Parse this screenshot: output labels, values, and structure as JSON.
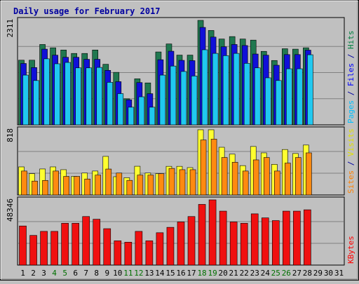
{
  "chart_data": {
    "type": "bar",
    "title": "Daily usage for February 2017",
    "x": [
      "1",
      "2",
      "3",
      "4",
      "5",
      "6",
      "7",
      "8",
      "9",
      "10",
      "11",
      "12",
      "13",
      "14",
      "15",
      "16",
      "17",
      "18",
      "19",
      "20",
      "21",
      "22",
      "23",
      "24",
      "25",
      "26",
      "27",
      "28",
      "29",
      "30",
      "31"
    ],
    "weekend_days": [
      "4",
      "5",
      "11",
      "12",
      "18",
      "19",
      "25",
      "26"
    ],
    "panels": [
      {
        "id": "hits-panel",
        "max_label": "2311",
        "ymax": 2311,
        "legend": [
          {
            "text": "Pages",
            "color": "#00c0ff"
          },
          {
            "text": " / ",
            "color": "#0000a0"
          },
          {
            "text": "Files",
            "color": "#0000ff"
          },
          {
            "text": " / ",
            "color": "#0000a0"
          },
          {
            "text": "Hits",
            "color": "#008040"
          }
        ],
        "series": [
          {
            "name": "Hits",
            "color": "#207850",
            "values": [
              1430,
              1430,
              1777,
              1704,
              1655,
              1579,
              1579,
              1655,
              1339,
              1161,
              576,
              1018,
              927,
              1612,
              1789,
              1542,
              1542,
              2311,
              2087,
              1898,
              1952,
              1898,
              1874,
              1625,
              1423,
              1683,
              1674,
              1704,
              null,
              null,
              null
            ]
          },
          {
            "name": "Files",
            "color": "#1010d8",
            "values": [
              1357,
              1267,
              1674,
              1541,
              1494,
              1494,
              1449,
              1449,
              1205,
              955,
              553,
              935,
              689,
              1440,
              1628,
              1426,
              1420,
              2155,
              1941,
              1726,
              1777,
              1754,
              1566,
              1541,
              1318,
              1554,
              1554,
              1652,
              null,
              null,
              null
            ]
          },
          {
            "name": "Pages",
            "color": "#20c8f0",
            "values": [
              1100,
              980,
              1460,
              1350,
              1380,
              1260,
              1260,
              1270,
              940,
              690,
              390,
              620,
              390,
              1100,
              1300,
              1180,
              1080,
              1660,
              1580,
              1530,
              1580,
              1360,
              1260,
              1040,
              980,
              1240,
              1240,
              1550,
              null,
              null,
              null
            ]
          }
        ]
      },
      {
        "id": "visits-panel",
        "max_label": "818",
        "ymax": 818,
        "legend": [
          {
            "text": "Sites",
            "color": "#ff8000"
          },
          {
            "text": " / ",
            "color": "#0000a0"
          },
          {
            "text": "Visits",
            "color": "#e0e000"
          }
        ],
        "series": [
          {
            "name": "Visits",
            "color": "#ffff30",
            "values": [
              352,
              267,
              326,
              352,
              317,
              233,
              275,
              300,
              484,
              229,
              216,
              360,
              275,
              267,
              359,
              359,
              343,
              818,
              818,
              598,
              512,
              368,
              608,
              528,
              384,
              570,
              520,
              626,
              null,
              null,
              null
            ]
          },
          {
            "name": "Sites",
            "color": "#ff8a10",
            "values": [
              300,
              174,
              182,
              300,
              233,
              233,
              200,
              250,
              325,
              275,
              183,
              250,
              250,
              267,
              333,
              317,
              317,
              690,
              700,
              470,
              410,
              300,
              440,
              470,
              300,
              400,
              470,
              528,
              null,
              null,
              null
            ]
          }
        ]
      },
      {
        "id": "kbytes-panel",
        "max_label": "48346",
        "ymax": 48346,
        "legend": [
          {
            "text": "KBytes",
            "color": "#ff0000"
          }
        ],
        "series": [
          {
            "name": "KBytes",
            "color": "#f01010",
            "values": [
              29000,
              22000,
              25000,
              25000,
              31000,
              31000,
              36000,
              34000,
              27000,
              18000,
              17000,
              25000,
              18000,
              24000,
              28000,
              32000,
              36000,
              45000,
              48346,
              40000,
              32000,
              31000,
              38000,
              35000,
              33000,
              40000,
              40000,
              41000,
              null,
              null,
              null
            ]
          }
        ]
      }
    ]
  }
}
